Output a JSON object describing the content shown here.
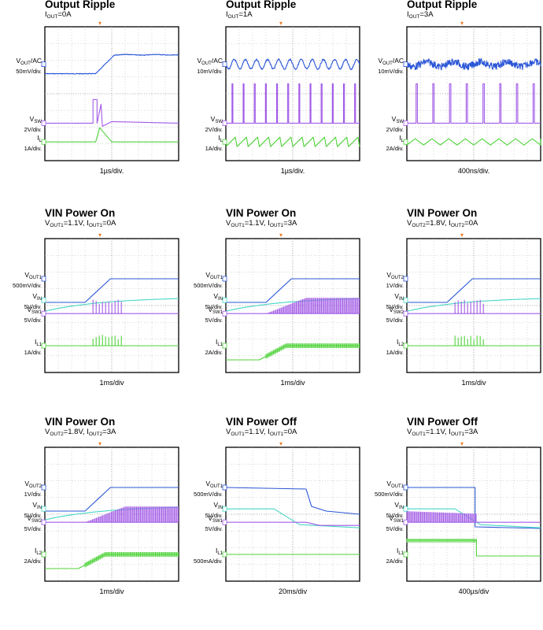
{
  "colors": {
    "ch1": "#2a55d6",
    "ch2": "#46d7c6",
    "ch3": "#a25be6",
    "ch4": "#4fd33a",
    "trigger": "#ef7d2a",
    "grid": "#8c8c8c",
    "frame": "#000000"
  },
  "chart_data": [
    {
      "type": "line",
      "title": "Output Ripple",
      "subtitle": "I_OUT=0A",
      "time_div": "1µs/div.",
      "channels": [
        {
          "label": "V_OUT/AC",
          "scale": "50mV/div.",
          "kind": "output-step"
        },
        {
          "label": "V_SW",
          "scale": "2V/div.",
          "kind": "single-pulse"
        },
        {
          "label": "I_L",
          "scale": "1A/div.",
          "kind": "single-triangle"
        }
      ]
    },
    {
      "type": "line",
      "title": "Output Ripple",
      "subtitle": "I_OUT=1A",
      "time_div": "1µs/div.",
      "channels": [
        {
          "label": "V_OUT/AC",
          "scale": "10mV/div.",
          "kind": "ripple-sine"
        },
        {
          "label": "V_SW",
          "scale": "2V/div.",
          "kind": "pulse-train"
        },
        {
          "label": "I_L",
          "scale": "1A/div.",
          "kind": "sawtooth"
        }
      ]
    },
    {
      "type": "line",
      "title": "Output Ripple",
      "subtitle": "I_OUT=3A",
      "time_div": "400ns/div.",
      "channels": [
        {
          "label": "V_OUT/AC",
          "scale": "10mV/div.",
          "kind": "noisy-ripple"
        },
        {
          "label": "V_SW",
          "scale": "2V/div.",
          "kind": "pulse-train"
        },
        {
          "label": "I_L",
          "scale": "2A/div.",
          "kind": "triangle"
        }
      ]
    },
    {
      "type": "line",
      "title": "VIN Power On",
      "subtitle": "V_OUT1=1.1V, I_OUT1=0A",
      "time_div": "1ms/div",
      "channels": [
        {
          "label": "V_OUT1",
          "scale": "500mV/div.",
          "kind": "ramp-up"
        },
        {
          "label": "V_IN",
          "scale": "5V/div.",
          "kind": "vin-rise"
        },
        {
          "label": "V_SW1",
          "scale": "5V/div.",
          "kind": "burst-sw"
        },
        {
          "label": "I_L1",
          "scale": "1A/div.",
          "kind": "burst-current"
        }
      ]
    },
    {
      "type": "line",
      "title": "VIN Power On",
      "subtitle": "V_OUT1=1.1V, I_OUT1=3A",
      "time_div": "1ms/div",
      "channels": [
        {
          "label": "V_OUT1",
          "scale": "500mV/div.",
          "kind": "ramp-up"
        },
        {
          "label": "V_IN",
          "scale": "5V/div.",
          "kind": "vin-rise"
        },
        {
          "label": "V_SW1",
          "scale": "5V/div.",
          "kind": "filled-sw"
        },
        {
          "label": "I_L1",
          "scale": "2A/div.",
          "kind": "filled-current"
        }
      ]
    },
    {
      "type": "line",
      "title": "VIN Power On",
      "subtitle": "V_OUT2=1.8V, I_OUT2=0A",
      "time_div": "1ms/div",
      "channels": [
        {
          "label": "V_OUT2",
          "scale": "1V/div.",
          "kind": "ramp-up"
        },
        {
          "label": "V_IN",
          "scale": "5V/div.",
          "kind": "vin-rise"
        },
        {
          "label": "V_SW2",
          "scale": "5V/div.",
          "kind": "burst-sw"
        },
        {
          "label": "I_L2",
          "scale": "1A/div.",
          "kind": "burst-current"
        }
      ]
    },
    {
      "type": "line",
      "title": "VIN Power On",
      "subtitle": "V_OUT2=1.8V, I_OUT2=3A",
      "time_div": "1ms/div",
      "channels": [
        {
          "label": "V_OUT2",
          "scale": "1V/div.",
          "kind": "ramp-up"
        },
        {
          "label": "V_IN",
          "scale": "5V/div.",
          "kind": "vin-rise"
        },
        {
          "label": "V_SW2",
          "scale": "5V/div.",
          "kind": "filled-sw"
        },
        {
          "label": "I_L2",
          "scale": "2A/div.",
          "kind": "filled-current"
        }
      ]
    },
    {
      "type": "line",
      "title": "VIN Power Off",
      "subtitle": "V_OUT1=1.1V, I_OUT1=0A",
      "time_div": "20ms/div",
      "channels": [
        {
          "label": "V_OUT1",
          "scale": "500mV/div.",
          "kind": "decay"
        },
        {
          "label": "V_IN",
          "scale": "5V/div.",
          "kind": "vin-fall"
        },
        {
          "label": "V_SW1",
          "scale": "5V/div.",
          "kind": "sw-off-flat"
        },
        {
          "label": "I_L1",
          "scale": "500mA/div.",
          "kind": "flat-low"
        }
      ]
    },
    {
      "type": "line",
      "title": "VIN Power Off",
      "subtitle": "V_OUT1=1.1V, I_OUT1=3A",
      "time_div": "400µs/div",
      "channels": [
        {
          "label": "V_OUT1",
          "scale": "500mV/div.",
          "kind": "drop-off"
        },
        {
          "label": "V_IN",
          "scale": "5V/div.",
          "kind": "vin-fall"
        },
        {
          "label": "V_SW1",
          "scale": "5V/div.",
          "kind": "filled-sw-off"
        },
        {
          "label": "I_L1",
          "scale": "2A/div.",
          "kind": "current-off"
        }
      ]
    }
  ]
}
